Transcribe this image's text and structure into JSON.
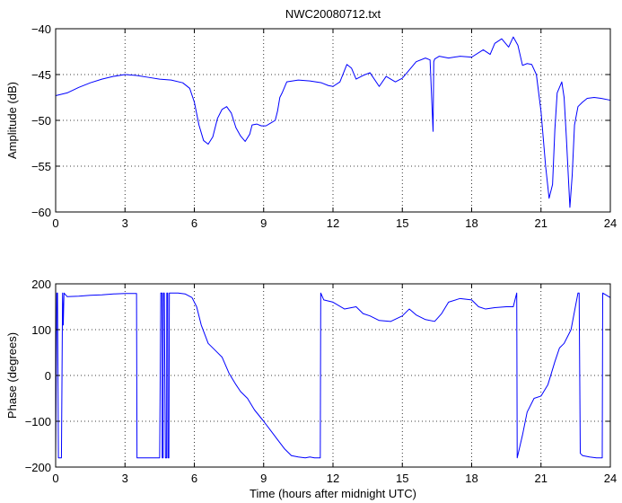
{
  "chart_data": [
    {
      "type": "line",
      "title": "NWC20080712.txt",
      "xlabel": "",
      "ylabel": "Amplitude (dB)",
      "xlim": [
        0,
        24
      ],
      "ylim": [
        -60,
        -40
      ],
      "xticks": [
        0,
        3,
        6,
        9,
        12,
        15,
        18,
        21,
        24
      ],
      "yticks": [
        -40,
        -45,
        -50,
        -55,
        -60
      ],
      "xtick_labels": [
        "0",
        "3",
        "6",
        "9",
        "12",
        "15",
        "18",
        "21",
        "24"
      ],
      "ytick_labels": [
        "−40",
        "−45",
        "−50",
        "−55",
        "−60"
      ],
      "grid": true,
      "series": [
        {
          "color": "#0000ff",
          "x": [
            0,
            0.5,
            1,
            1.5,
            2,
            2.5,
            3,
            3.5,
            4,
            4.5,
            5,
            5.5,
            5.8,
            6.0,
            6.2,
            6.4,
            6.6,
            6.8,
            7.0,
            7.2,
            7.4,
            7.6,
            7.8,
            8.0,
            8.2,
            8.4,
            8.5,
            8.7,
            8.9,
            9.1,
            9.3,
            9.5,
            9.6,
            9.7,
            9.8,
            10.0,
            10.5,
            11.0,
            11.5,
            11.8,
            12.0,
            12.3,
            12.6,
            12.8,
            13.0,
            13.3,
            13.6,
            14.0,
            14.3,
            14.7,
            15.0,
            15.3,
            15.6,
            16.0,
            16.2,
            16.33,
            16.36,
            16.4,
            16.6,
            17.0,
            17.5,
            18.0,
            18.5,
            18.8,
            19.0,
            19.3,
            19.6,
            19.8,
            20.0,
            20.2,
            20.4,
            20.6,
            20.8,
            21.0,
            21.2,
            21.35,
            21.5,
            21.6,
            21.7,
            21.9,
            22.0,
            22.1,
            22.25,
            22.35,
            22.45,
            22.6,
            22.8,
            23.0,
            23.3,
            23.6,
            24.0
          ],
          "y": [
            -47.3,
            -47.0,
            -46.4,
            -45.9,
            -45.5,
            -45.2,
            -45.0,
            -45.1,
            -45.3,
            -45.5,
            -45.6,
            -45.9,
            -46.5,
            -48.0,
            -50.5,
            -52.2,
            -52.6,
            -51.8,
            -49.8,
            -48.8,
            -48.5,
            -49.2,
            -50.8,
            -51.7,
            -52.3,
            -51.5,
            -50.5,
            -50.4,
            -50.6,
            -50.6,
            -50.3,
            -50.0,
            -49.0,
            -47.5,
            -47.0,
            -45.8,
            -45.6,
            -45.7,
            -45.9,
            -46.2,
            -46.3,
            -45.8,
            -43.9,
            -44.3,
            -45.5,
            -45.1,
            -44.8,
            -46.3,
            -45.2,
            -45.8,
            -45.4,
            -44.5,
            -43.6,
            -43.2,
            -43.4,
            -51.2,
            -43.6,
            -43.3,
            -43.0,
            -43.2,
            -43.0,
            -43.1,
            -42.3,
            -42.8,
            -41.6,
            -41.1,
            -42.0,
            -40.9,
            -41.8,
            -44.0,
            -43.8,
            -43.9,
            -45.0,
            -49.0,
            -55.0,
            -58.5,
            -57.0,
            -51.0,
            -47.0,
            -45.8,
            -47.5,
            -52.0,
            -59.5,
            -56.0,
            -50.5,
            -48.5,
            -48.0,
            -47.6,
            -47.5,
            -47.6,
            -47.8
          ]
        }
      ]
    },
    {
      "type": "line",
      "title": "",
      "xlabel": "Time (hours after midnight UTC)",
      "ylabel": "Phase (degrees)",
      "xlim": [
        0,
        24
      ],
      "ylim": [
        -200,
        200
      ],
      "xticks": [
        0,
        3,
        6,
        9,
        12,
        15,
        18,
        21,
        24
      ],
      "yticks": [
        200,
        100,
        0,
        -100,
        -200
      ],
      "xtick_labels": [
        "0",
        "3",
        "6",
        "9",
        "12",
        "15",
        "18",
        "21",
        "24"
      ],
      "ytick_labels": [
        "200",
        "100",
        "0",
        "−100",
        "−200"
      ],
      "grid": true,
      "series": [
        {
          "color": "#0000ff",
          "x": [
            0,
            0.05,
            0.08,
            0.12,
            0.15,
            0.2,
            0.25,
            0.3,
            0.33,
            0.36,
            0.5,
            1,
            1.5,
            2,
            2.5,
            3,
            3.5,
            3.52,
            3.53,
            3.8,
            4.2,
            4.5,
            4.55,
            4.6,
            4.61,
            4.65,
            4.66,
            4.7,
            4.75,
            4.8,
            4.81,
            4.85,
            4.86,
            4.9,
            4.92,
            4.95,
            5.0,
            5.3,
            5.6,
            5.9,
            6.1,
            6.3,
            6.6,
            6.9,
            7.2,
            7.5,
            7.8,
            8.0,
            8.3,
            8.6,
            9.0,
            9.3,
            9.6,
            9.9,
            10.2,
            10.5,
            10.8,
            11.0,
            11.2,
            11.45,
            11.47,
            11.6,
            12.0,
            12.5,
            13.0,
            13.3,
            13.6,
            14.0,
            14.5,
            15.0,
            15.3,
            15.6,
            16.0,
            16.4,
            16.7,
            17.0,
            17.5,
            18.0,
            18.3,
            18.6,
            19.0,
            19.5,
            19.8,
            19.95,
            19.97,
            20.2,
            20.4,
            20.7,
            21.0,
            21.3,
            21.6,
            21.8,
            22.0,
            22.3,
            22.6,
            22.65,
            22.7,
            22.8,
            23.1,
            23.4,
            23.65,
            23.67,
            24.0
          ],
          "y": [
            -180,
            180,
            180,
            -180,
            -180,
            -180,
            -180,
            180,
            110,
            180,
            172,
            173,
            175,
            176,
            178,
            179,
            179,
            -180,
            -180,
            -180,
            -180,
            -180,
            180,
            180,
            -180,
            -180,
            180,
            180,
            -180,
            -180,
            180,
            180,
            -180,
            -180,
            180,
            180,
            180,
            180,
            178,
            170,
            150,
            110,
            70,
            55,
            40,
            5,
            -20,
            -35,
            -50,
            -75,
            -100,
            -120,
            -140,
            -160,
            -175,
            -178,
            -180,
            -178,
            -180,
            -180,
            180,
            165,
            160,
            145,
            150,
            135,
            130,
            120,
            118,
            130,
            145,
            132,
            122,
            118,
            135,
            160,
            168,
            165,
            150,
            145,
            148,
            150,
            150,
            180,
            -180,
            -130,
            -80,
            -50,
            -45,
            -20,
            30,
            60,
            70,
            100,
            180,
            180,
            -170,
            -175,
            -178,
            -180,
            -180,
            180,
            170
          ]
        }
      ]
    }
  ]
}
